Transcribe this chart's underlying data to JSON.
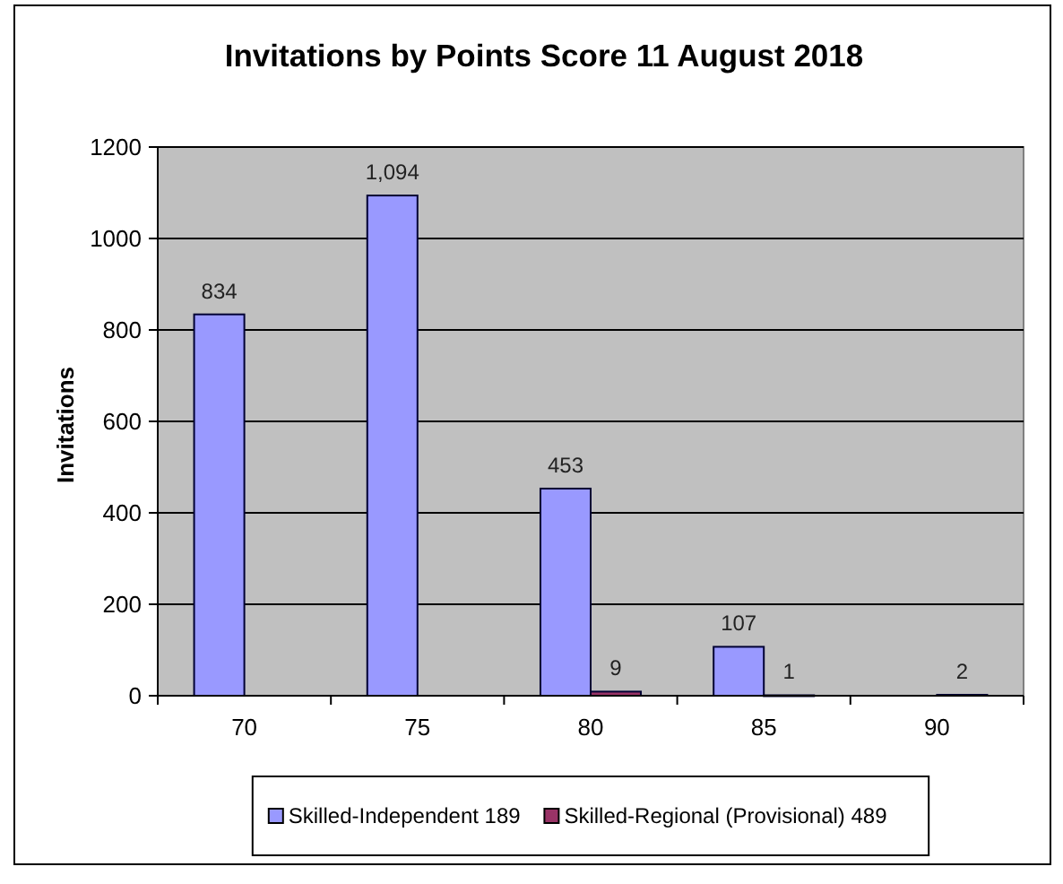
{
  "chart_data": {
    "type": "bar",
    "title": "Invitations by Points Score 11 August 2018",
    "ylabel": "Invitations",
    "categories": [
      "70",
      "75",
      "80",
      "85",
      "90"
    ],
    "series": [
      {
        "name": "Skilled-Independent 189",
        "color": "#9999ff",
        "values": [
          834,
          1094,
          453,
          107,
          null
        ],
        "value_labels": [
          "834",
          "1,094",
          "453",
          "107",
          null
        ]
      },
      {
        "name": "Skilled-Regional (Provisional) 489",
        "color": "#993366",
        "values": [
          null,
          null,
          9,
          1,
          2
        ],
        "value_labels": [
          null,
          null,
          "9",
          "1",
          "2"
        ]
      }
    ],
    "ylim": [
      0,
      1200
    ],
    "yticks": [
      0,
      200,
      400,
      600,
      800,
      1000,
      1200
    ],
    "grid": "y",
    "legend": "bottom"
  }
}
